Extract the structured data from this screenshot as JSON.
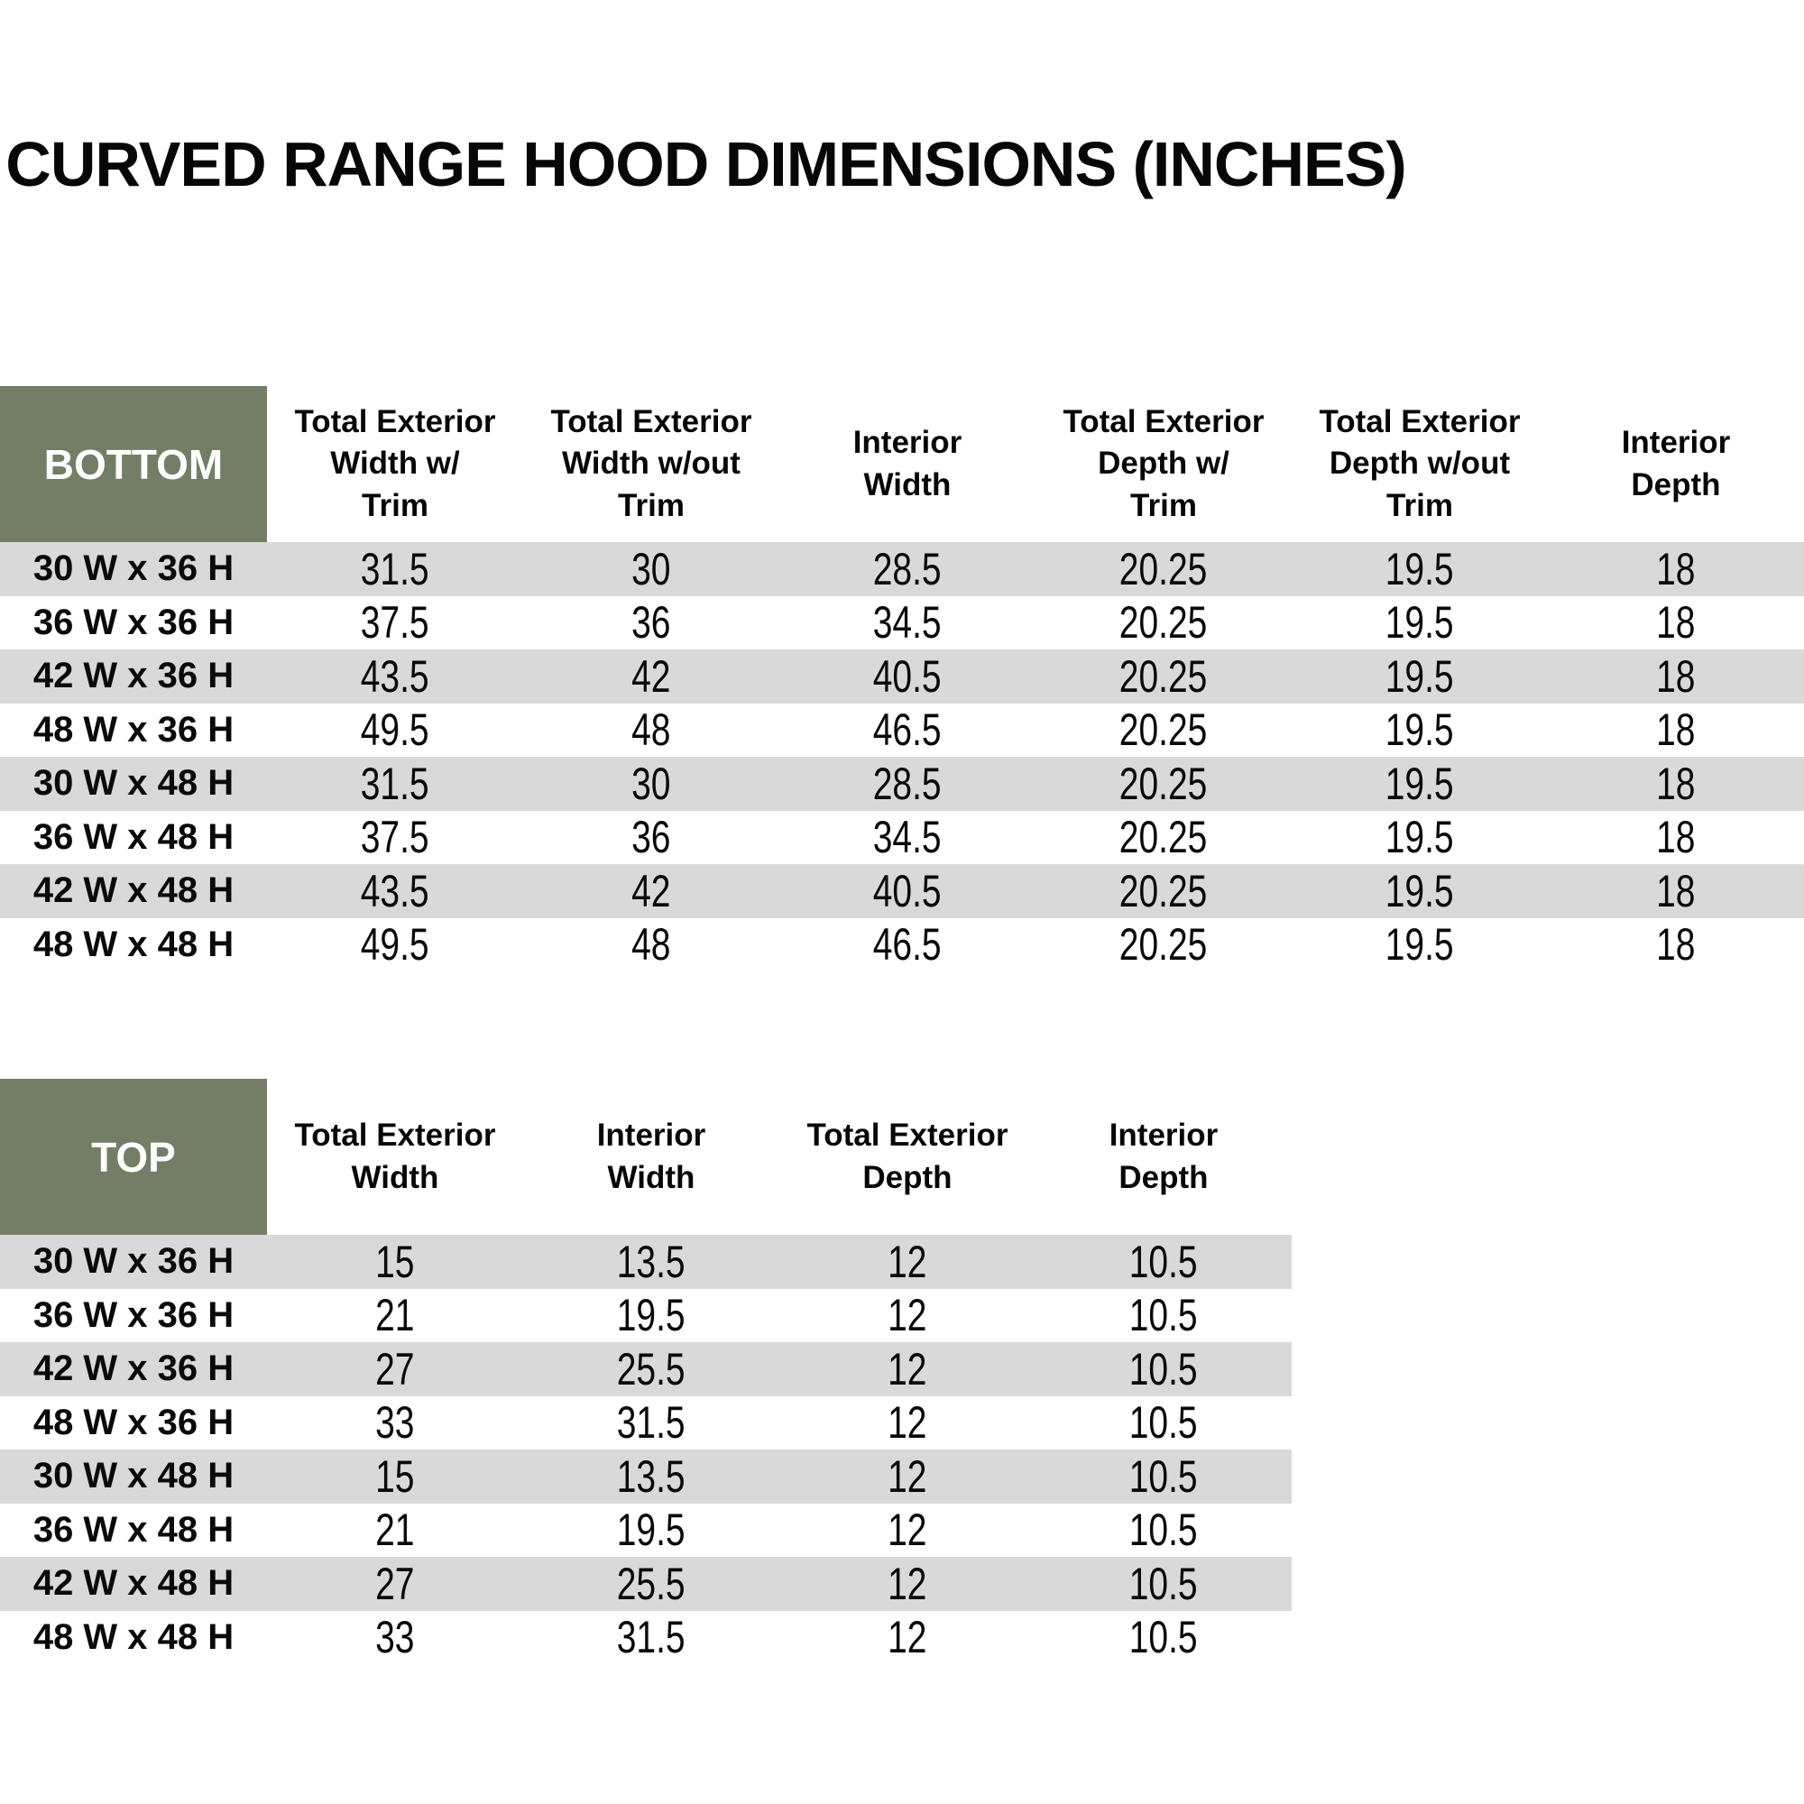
{
  "title": "CURVED RANGE HOOD DIMENSIONS (INCHES)",
  "colors": {
    "header_green": "#747E66",
    "row_stripe_gray": "#D9D9D9",
    "header_text": "#FFFFFF",
    "body_text": "#0A0A0A"
  },
  "bottom_table": {
    "corner_label": "BOTTOM",
    "columns": [
      {
        "label": "Total Exterior\nWidth w/\nTrim"
      },
      {
        "label": "Total Exterior\nWidth w/out\nTrim"
      },
      {
        "label": "Interior\nWidth"
      },
      {
        "label": "Total Exterior\nDepth w/\nTrim"
      },
      {
        "label": "Total Exterior\nDepth w/out\nTrim"
      },
      {
        "label": "Interior\nDepth"
      }
    ],
    "rows": [
      {
        "label": "30 W x 36 H",
        "values": [
          "31.5",
          "30",
          "28.5",
          "20.25",
          "19.5",
          "18"
        ]
      },
      {
        "label": "36 W x 36 H",
        "values": [
          "37.5",
          "36",
          "34.5",
          "20.25",
          "19.5",
          "18"
        ]
      },
      {
        "label": "42 W x 36 H",
        "values": [
          "43.5",
          "42",
          "40.5",
          "20.25",
          "19.5",
          "18"
        ]
      },
      {
        "label": "48 W x 36 H",
        "values": [
          "49.5",
          "48",
          "46.5",
          "20.25",
          "19.5",
          "18"
        ]
      },
      {
        "label": "30 W x 48 H",
        "values": [
          "31.5",
          "30",
          "28.5",
          "20.25",
          "19.5",
          "18"
        ]
      },
      {
        "label": "36 W x 48 H",
        "values": [
          "37.5",
          "36",
          "34.5",
          "20.25",
          "19.5",
          "18"
        ]
      },
      {
        "label": "42 W x 48 H",
        "values": [
          "43.5",
          "42",
          "40.5",
          "20.25",
          "19.5",
          "18"
        ]
      },
      {
        "label": "48 W x 48 H",
        "values": [
          "49.5",
          "48",
          "46.5",
          "20.25",
          "19.5",
          "18"
        ]
      }
    ]
  },
  "top_table": {
    "corner_label": "TOP",
    "columns": [
      {
        "label": "Total Exterior\nWidth"
      },
      {
        "label": "Interior\nWidth"
      },
      {
        "label": "Total Exterior\nDepth"
      },
      {
        "label": "Interior\nDepth"
      }
    ],
    "rows": [
      {
        "label": "30 W x 36 H",
        "values": [
          "15",
          "13.5",
          "12",
          "10.5"
        ]
      },
      {
        "label": "36 W x 36 H",
        "values": [
          "21",
          "19.5",
          "12",
          "10.5"
        ]
      },
      {
        "label": "42 W x 36 H",
        "values": [
          "27",
          "25.5",
          "12",
          "10.5"
        ]
      },
      {
        "label": "48 W x 36 H",
        "values": [
          "33",
          "31.5",
          "12",
          "10.5"
        ]
      },
      {
        "label": "30 W x 48 H",
        "values": [
          "15",
          "13.5",
          "12",
          "10.5"
        ]
      },
      {
        "label": "36 W x 48 H",
        "values": [
          "21",
          "19.5",
          "12",
          "10.5"
        ]
      },
      {
        "label": "42 W x 48 H",
        "values": [
          "27",
          "25.5",
          "12",
          "10.5"
        ]
      },
      {
        "label": "48 W x 48 H",
        "values": [
          "33",
          "31.5",
          "12",
          "10.5"
        ]
      }
    ]
  }
}
